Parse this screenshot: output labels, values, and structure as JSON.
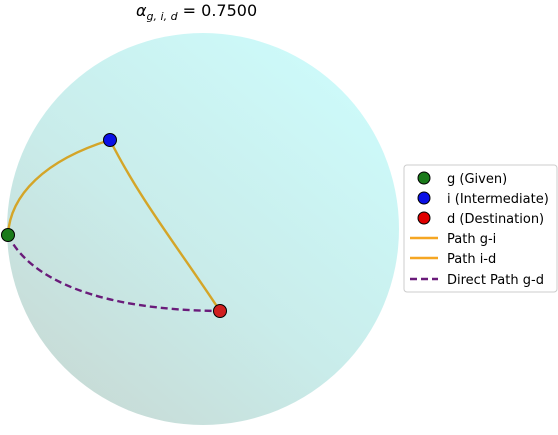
{
  "title": {
    "alpha_symbol": "α",
    "subscript": "g, i, d",
    "equals_value": " = 0.7500"
  },
  "legend": {
    "items": [
      {
        "label": "g (Given)",
        "kind": "marker",
        "color": "#1a7a1a"
      },
      {
        "label": "i (Intermediate)",
        "kind": "marker",
        "color": "#0a10e6"
      },
      {
        "label": "d (Destination)",
        "kind": "marker",
        "color": "#e00000"
      },
      {
        "label": "Path g-i",
        "kind": "line",
        "color": "#f5a623"
      },
      {
        "label": "Path i-d",
        "kind": "line",
        "color": "#f5a623"
      },
      {
        "label": "Direct Path g-d",
        "kind": "dashed",
        "color": "#6a1b7a"
      }
    ]
  },
  "colors": {
    "sphere_light": "#cdfafa",
    "sphere_dark": "#c8ddd8",
    "path_gi": "#d4a528",
    "path_id": "#d4a528",
    "direct_path": "#6a1b7a",
    "point_g": "#1a7a1a",
    "point_i": "#0a10e6",
    "point_d": "#d02020"
  }
}
